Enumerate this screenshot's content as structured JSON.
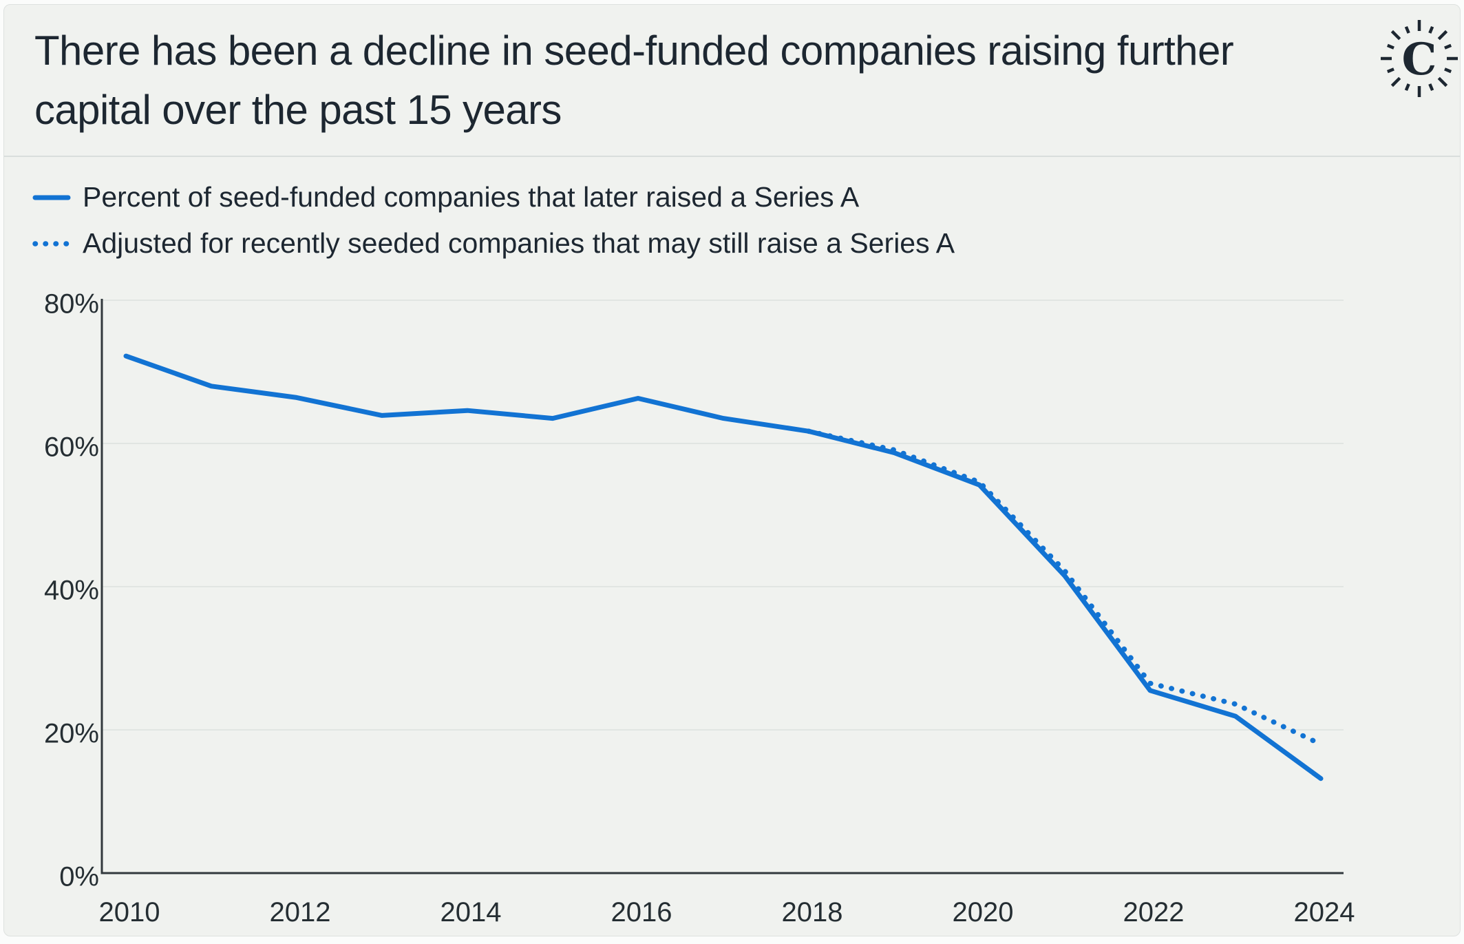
{
  "header": {
    "title": "There has been a decline in seed-funded companies raising further capital over the past 15 years",
    "logo": "carta-sunburst-c-logo"
  },
  "legend": [
    {
      "label": "Percent of seed-funded companies that later raised a Series A",
      "style": "solid"
    },
    {
      "label": "Adjusted for recently seeded companies that may still raise a Series A",
      "style": "dotted"
    }
  ],
  "colors": {
    "accent_blue": "#1273d3",
    "card_background": "#f0f2ef",
    "text_dark": "#1d2731",
    "tick_text": "#252e33",
    "gridline": "#e1e5e2",
    "axis": "#32393d",
    "divider": "#d9dedc"
  },
  "chart_data": {
    "type": "line",
    "title": "There has been a decline in seed-funded companies raising further capital over the past 15 years",
    "x": [
      2010,
      2011,
      2012,
      2013,
      2014,
      2015,
      2016,
      2017,
      2018,
      2019,
      2020,
      2021,
      2022,
      2023,
      2024
    ],
    "series": [
      {
        "name": "Percent of seed-funded companies that later raised a Series A",
        "style": "solid",
        "values": [
          72.2,
          68.0,
          66.4,
          63.9,
          64.6,
          63.5,
          66.3,
          63.5,
          61.7,
          58.7,
          54.2,
          41.5,
          25.5,
          21.9,
          13.2
        ]
      },
      {
        "name": "Adjusted for recently seeded companies that may still raise a Series A",
        "style": "dotted",
        "values": [
          null,
          null,
          null,
          null,
          null,
          null,
          null,
          null,
          61.7,
          59.1,
          54.6,
          42.2,
          26.5,
          23.6,
          18.0
        ]
      }
    ],
    "xlabel": "",
    "ylabel": "",
    "ylim": [
      0,
      80
    ],
    "y_tick_values": [
      0,
      20,
      40,
      60,
      80
    ],
    "y_ticks": [
      "0%",
      "20%",
      "40%",
      "60%",
      "80%"
    ],
    "x_ticks": [
      2010,
      2012,
      2014,
      2016,
      2018,
      2020,
      2022,
      2024
    ],
    "grid": true,
    "legend_position": "top-left"
  }
}
